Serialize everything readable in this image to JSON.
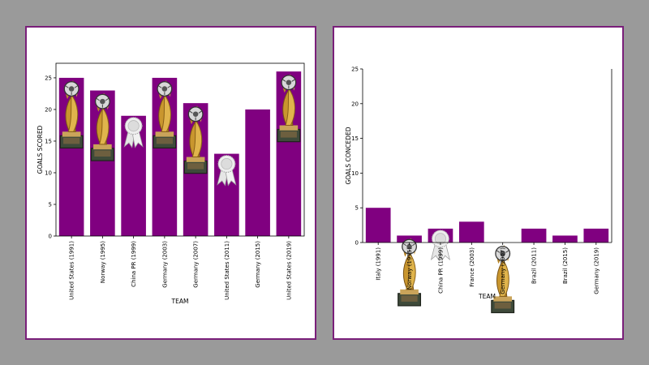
{
  "colors": {
    "bar": "#800080",
    "frame": "#7a1f7a",
    "background": "#9a9a9a"
  },
  "chart_data": [
    {
      "type": "bar",
      "categories": [
        "United States (1991)",
        "Norway (1995)",
        "China PR (1999)",
        "Germany (2003)",
        "Germany (2007)",
        "United States (2011)",
        "Germany (2015)",
        "United States (2019)"
      ],
      "values": [
        25,
        23,
        19,
        25,
        21,
        13,
        20,
        26
      ],
      "icons": [
        "trophy-icon",
        "trophy-icon",
        "ribbon-icon",
        "trophy-icon",
        "trophy-icon",
        "ribbon-icon",
        "",
        "trophy-icon"
      ],
      "xlabel": "TEAM",
      "ylabel": "GOALS SCORED",
      "ylim": [
        0,
        27.3
      ],
      "yticks": [
        0,
        5,
        10,
        15,
        20,
        25
      ],
      "grid": false
    },
    {
      "type": "bar",
      "categories": [
        "Italy (1991)",
        "Norway (1995)",
        "China PR (1999)",
        "France (2003)",
        "Germany (2007)",
        "Brazil (2011)",
        "Brazil (2015)",
        "Germany (2019)"
      ],
      "values": [
        5,
        1,
        2,
        3,
        0,
        2,
        1,
        2
      ],
      "icons": [
        "",
        "trophy-icon",
        "ribbon-icon",
        "",
        "trophy-icon",
        "",
        "",
        ""
      ],
      "xlabel": "TEAM",
      "ylabel": "GOALS CONCEDED",
      "ylim": [
        0,
        25
      ],
      "yticks": [
        0,
        5,
        10,
        15,
        20,
        25
      ],
      "grid": false
    }
  ]
}
